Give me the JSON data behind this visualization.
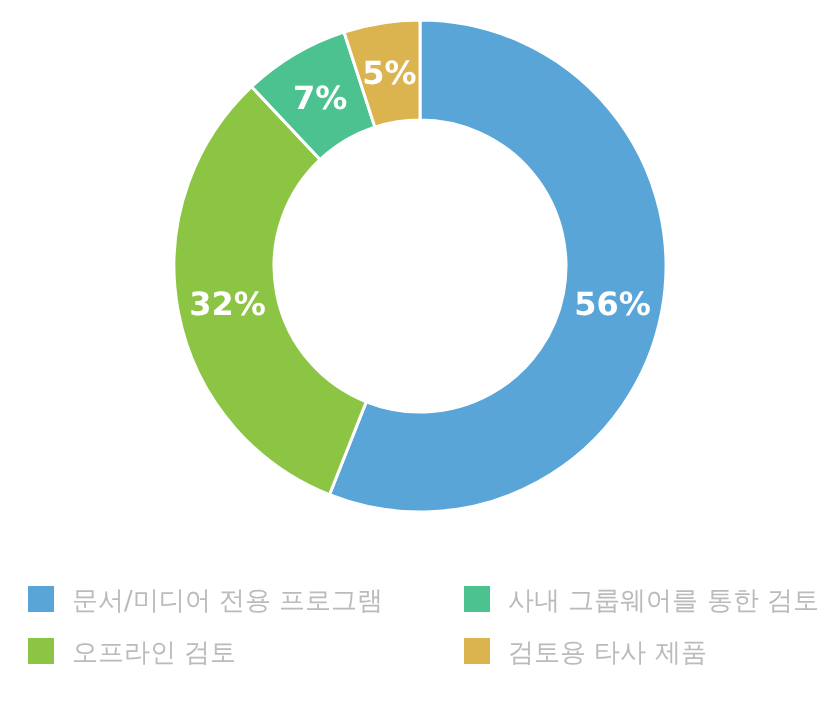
{
  "chart_data": {
    "type": "donut",
    "categories": [
      "문서/미디어 전용 프로그램",
      "오프라인 검토",
      "사내 그룹웨어를 통한 검토",
      "검토용 타사 제품"
    ],
    "values": [
      56,
      32,
      7,
      5
    ],
    "colors": [
      "#5aa5d8",
      "#8cc443",
      "#4cc290",
      "#dbb44f"
    ],
    "value_labels": [
      "56%",
      "32%",
      "7%",
      "5%"
    ],
    "legend": "bottom"
  }
}
